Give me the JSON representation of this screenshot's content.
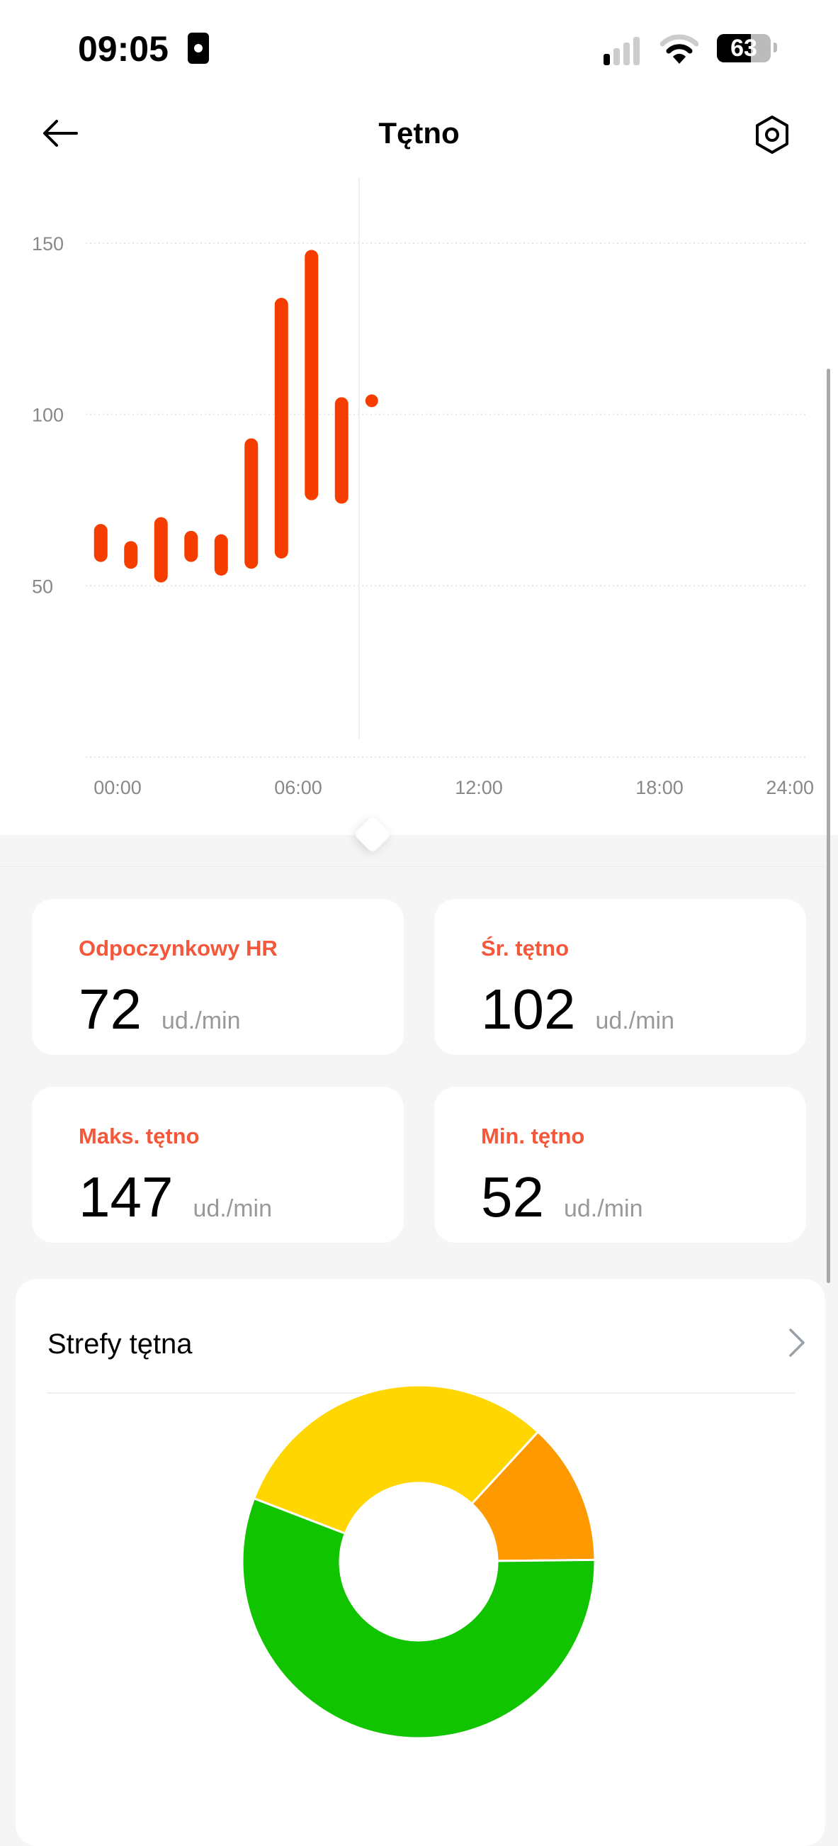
{
  "status_bar": {
    "time": "09:05",
    "battery": "63",
    "icons": [
      "id-card-icon",
      "cellular-signal-icon",
      "wifi-icon",
      "battery-icon"
    ]
  },
  "header": {
    "title": "Tętno",
    "back_icon": "arrow-left-icon",
    "settings_icon": "hexagon-settings-icon"
  },
  "chart_data": [
    {
      "type": "bar",
      "subtype": "range",
      "x_unit": "hour",
      "x_ticks": [
        "00:00",
        "06:00",
        "12:00",
        "18:00",
        "24:00"
      ],
      "xlim": [
        0,
        24
      ],
      "y_ticks": [
        "50",
        "100",
        "150"
      ],
      "ylim": [
        0,
        150
      ],
      "grid": true,
      "color": "#f53d00",
      "current_time_marker": 9.08,
      "ranges": [
        {
          "hour": 0,
          "min": 58,
          "max": 67
        },
        {
          "hour": 1,
          "min": 56,
          "max": 62
        },
        {
          "hour": 2,
          "min": 52,
          "max": 69
        },
        {
          "hour": 3,
          "min": 58,
          "max": 65
        },
        {
          "hour": 4,
          "min": 54,
          "max": 64
        },
        {
          "hour": 5,
          "min": 56,
          "max": 92
        },
        {
          "hour": 6,
          "min": 59,
          "max": 133
        },
        {
          "hour": 7,
          "min": 76,
          "max": 147
        },
        {
          "hour": 8,
          "min": 75,
          "max": 104
        },
        {
          "hour": 9,
          "min": 104,
          "max": 104
        }
      ]
    },
    {
      "type": "pie",
      "donut": true,
      "title": "Strefy tętna",
      "slices": [
        {
          "value": 31,
          "color": "#ffd600"
        },
        {
          "value": 13,
          "color": "#ff9900"
        },
        {
          "value": 56,
          "color": "#11c400"
        }
      ]
    }
  ],
  "stats": [
    {
      "label": "Odpoczynkowy HR",
      "value": "72",
      "unit": "ud./min"
    },
    {
      "label": "Śr. tętno",
      "value": "102",
      "unit": "ud./min"
    },
    {
      "label": "Maks. tętno",
      "value": "147",
      "unit": "ud./min"
    },
    {
      "label": "Min. tętno",
      "value": "52",
      "unit": "ud./min"
    }
  ],
  "zones": {
    "title": "Strefy tętna",
    "chevron_icon": "chevron-right-icon"
  },
  "colors": {
    "accent": "#f5573a",
    "bar": "#f53d00"
  }
}
